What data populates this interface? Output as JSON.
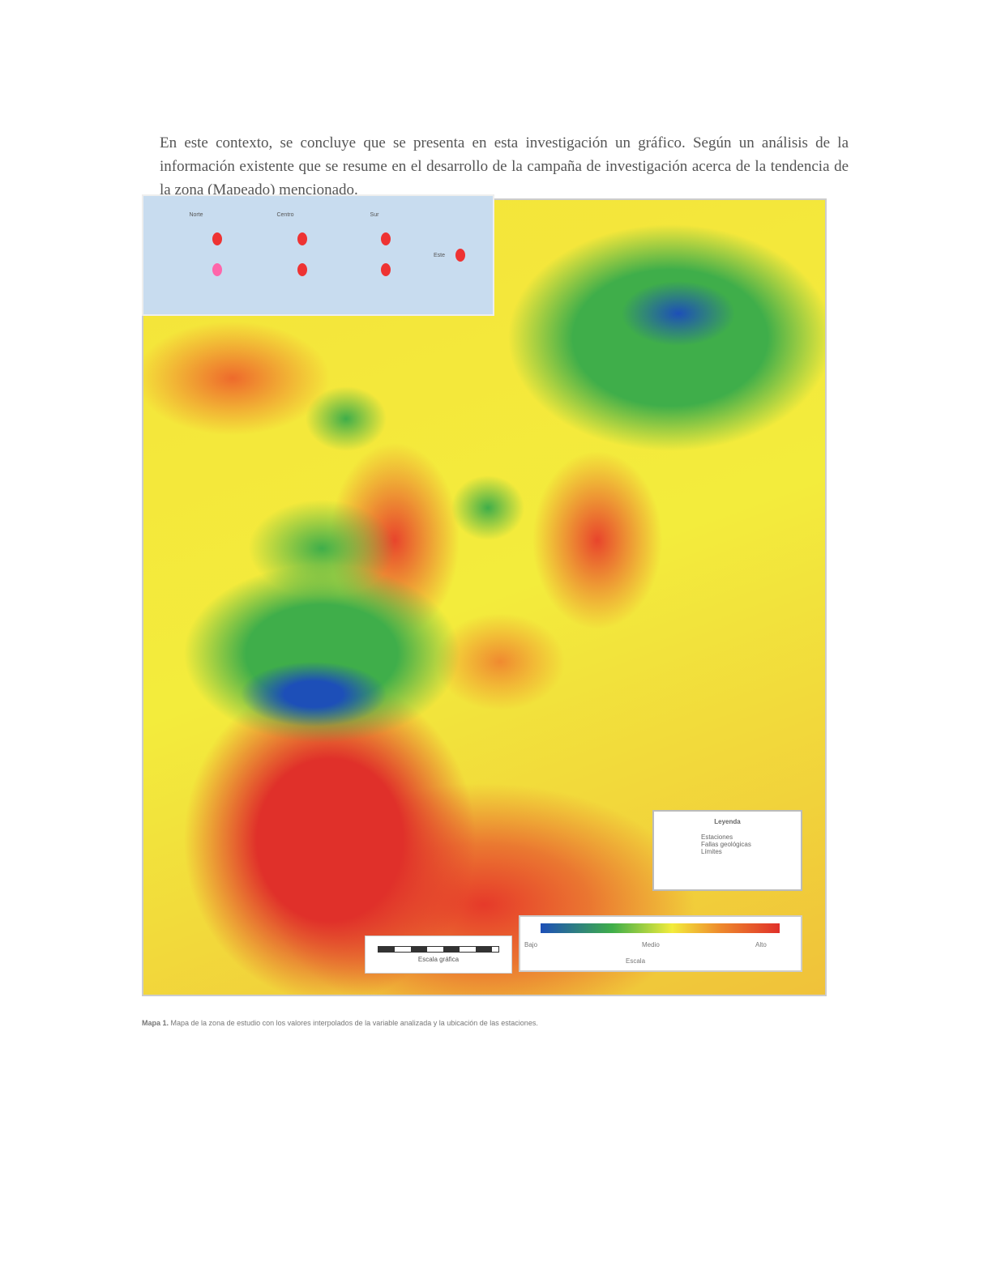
{
  "intro_text": "En este contexto, se concluye que se presenta en esta investigación un gráfico. Según un análisis de la información existente que se resume en el desarrollo de la campaña de investigación acerca de la tendencia de la zona (Mapeado) mencionado.",
  "map": {
    "inset_labels": [
      "Norte",
      "Centro",
      "Sur",
      "Este"
    ],
    "legend": {
      "title": "Leyenda",
      "items": [
        "Estaciones",
        "Fallas geológicas",
        "Límites"
      ]
    },
    "colorbar": {
      "min_label": "Bajo",
      "mid_label": "Medio",
      "max_label": "Alto",
      "title": "Escala"
    },
    "scale_label": "Escala gráfica"
  },
  "caption": {
    "label": "Mapa 1.",
    "text": "Mapa de la zona de estudio con los valores interpolados de la variable analizada y la ubicación de las estaciones."
  }
}
